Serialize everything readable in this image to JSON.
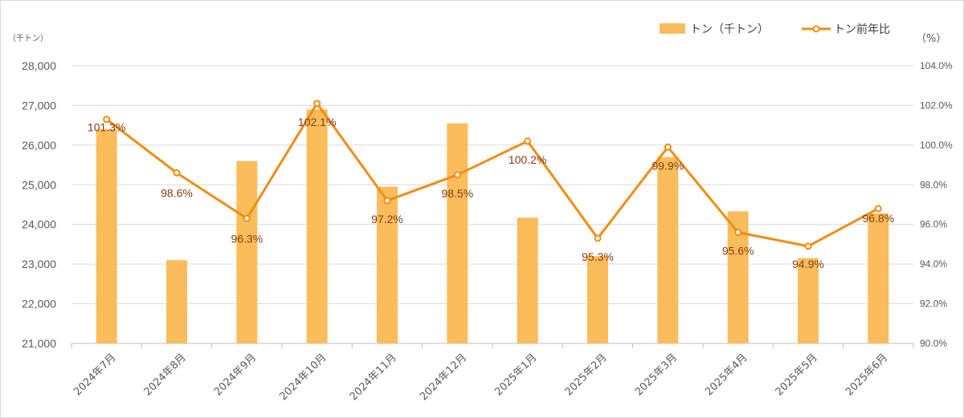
{
  "chart_data": {
    "type": "bar+line",
    "categories": [
      "2024年7月",
      "2024年8月",
      "2024年9月",
      "2024年10月",
      "2024年11月",
      "2024年12月",
      "2025年1月",
      "2025年2月",
      "2025年3月",
      "2025年4月",
      "2025年5月",
      "2025年6月"
    ],
    "series": [
      {
        "name": "トン（千トン）",
        "type": "bar",
        "axis": "left",
        "color": "#fbbc5c",
        "values": [
          26400,
          23100,
          25600,
          26900,
          24950,
          26550,
          24170,
          23200,
          25700,
          24330,
          23150,
          24280
        ]
      },
      {
        "name": "トン前年比",
        "type": "line",
        "axis": "right",
        "color": "#f28c12",
        "values": [
          101.3,
          98.6,
          96.3,
          102.1,
          97.2,
          98.5,
          100.2,
          95.3,
          99.9,
          95.6,
          94.9,
          96.8
        ],
        "labels": [
          "101.3%",
          "98.6%",
          "96.3%",
          "102.1%",
          "97.2%",
          "98.5%",
          "100.2%",
          "95.3%",
          "99.9%",
          "95.6%",
          "94.9%",
          "96.8%"
        ]
      }
    ],
    "y_left": {
      "unit": "（千トン）",
      "ylim": [
        21000,
        28000
      ],
      "ticks": [
        "21,000",
        "22,000",
        "23,000",
        "24,000",
        "25,000",
        "26,000",
        "27,000",
        "28,000"
      ]
    },
    "y_right": {
      "unit": "（%）",
      "ylim": [
        90,
        104
      ],
      "ticks": [
        "90.0%",
        "92.0%",
        "94.0%",
        "96.0%",
        "98.0%",
        "100.0%",
        "102.0%",
        "104.0%"
      ]
    },
    "grid": true,
    "legend_position": "top-right"
  }
}
